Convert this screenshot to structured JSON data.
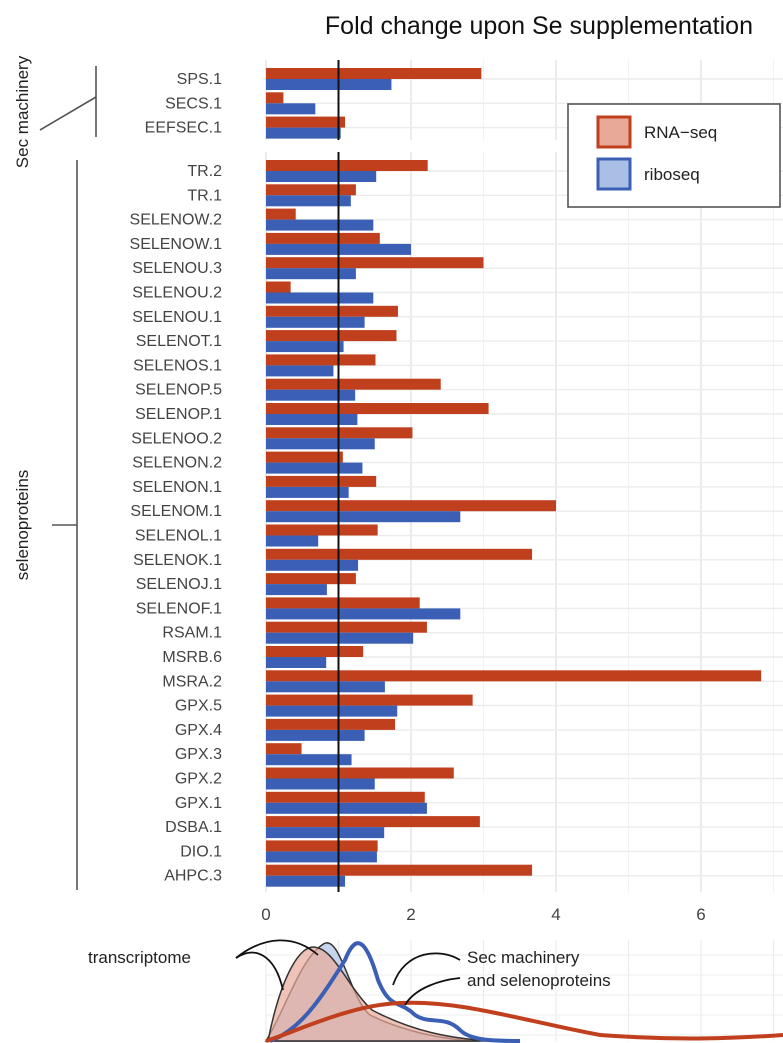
{
  "chart_data": {
    "type": "bar",
    "orientation": "horizontal",
    "title": "Fold change upon Se supplementation",
    "xlim": [
      0,
      7.1
    ],
    "x_ticks": [
      0,
      2,
      4,
      6
    ],
    "reference_line": 1,
    "grid": true,
    "legend_position": "top-right",
    "groups": [
      {
        "name": "Sec machinery",
        "categories": [
          "SPS.1",
          "SECS.1",
          "EEFSEC.1"
        ]
      },
      {
        "name": "selenoproteins",
        "categories": [
          "TR.2",
          "TR.1",
          "SELENOW.2",
          "SELENOW.1",
          "SELENOU.3",
          "SELENOU.2",
          "SELENOU.1",
          "SELENOT.1",
          "SELENOS.1",
          "SELENOP.5",
          "SELENOP.1",
          "SELENOO.2",
          "SELENON.2",
          "SELENON.1",
          "SELENOM.1",
          "SELENOL.1",
          "SELENOK.1",
          "SELENOJ.1",
          "SELENOF.1",
          "RSAM.1",
          "MSRB.6",
          "MSRA.2",
          "GPX.5",
          "GPX.4",
          "GPX.3",
          "GPX.2",
          "GPX.1",
          "DSBA.1",
          "DIO.1",
          "AHPC.3"
        ]
      }
    ],
    "categories": [
      "SPS.1",
      "SECS.1",
      "EEFSEC.1",
      "TR.2",
      "TR.1",
      "SELENOW.2",
      "SELENOW.1",
      "SELENOU.3",
      "SELENOU.2",
      "SELENOU.1",
      "SELENOT.1",
      "SELENOS.1",
      "SELENOP.5",
      "SELENOP.1",
      "SELENOO.2",
      "SELENON.2",
      "SELENON.1",
      "SELENOM.1",
      "SELENOL.1",
      "SELENOK.1",
      "SELENOJ.1",
      "SELENOF.1",
      "RSAM.1",
      "MSRB.6",
      "MSRA.2",
      "GPX.5",
      "GPX.4",
      "GPX.3",
      "GPX.2",
      "GPX.1",
      "DSBA.1",
      "DIO.1",
      "AHPC.3"
    ],
    "series": [
      {
        "name": "RNA−seq",
        "color": "#c0401e",
        "legend_fill": "#e8a998",
        "values": [
          2.97,
          0.24,
          1.09,
          2.23,
          1.24,
          0.41,
          1.57,
          3.0,
          0.34,
          1.82,
          1.8,
          1.51,
          2.41,
          3.07,
          2.02,
          1.06,
          1.52,
          4.0,
          1.54,
          3.67,
          1.24,
          2.12,
          2.22,
          1.34,
          6.83,
          2.85,
          1.78,
          0.49,
          2.59,
          2.19,
          2.95,
          1.54,
          3.67
        ]
      },
      {
        "name": "riboseq",
        "color": "#3a5fb5",
        "legend_fill": "#a9bfe6",
        "values": [
          1.73,
          0.68,
          1.03,
          1.52,
          1.17,
          1.48,
          2.0,
          1.24,
          1.48,
          1.36,
          1.07,
          0.93,
          1.23,
          1.26,
          1.5,
          1.33,
          1.14,
          2.68,
          0.72,
          1.27,
          0.84,
          2.68,
          2.03,
          0.83,
          1.64,
          1.81,
          1.36,
          1.18,
          1.5,
          2.22,
          1.63,
          1.53,
          1.09
        ]
      }
    ]
  },
  "density_panel": {
    "annotations": [
      "transcriptome",
      "Sec machinery",
      "and selenoproteins"
    ]
  }
}
